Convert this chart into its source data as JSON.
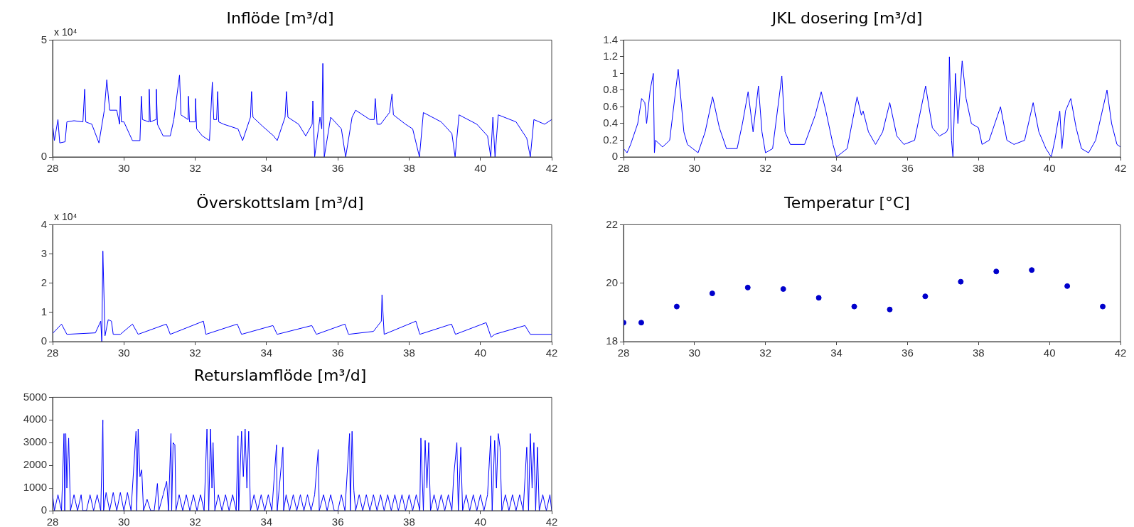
{
  "chart_data": [
    {
      "type": "line",
      "title": "Inflöde [m³/d]",
      "annotations": [
        "x 10⁴"
      ],
      "color": "#0000ff",
      "xlim": [
        28,
        42
      ],
      "xticks": [
        28,
        30,
        32,
        34,
        36,
        38,
        40,
        42
      ],
      "ylim": [
        0,
        5
      ],
      "yticks": [
        0,
        5
      ],
      "x": [
        28,
        28.05,
        28.15,
        28.2,
        28.35,
        28.4,
        28.6,
        28.85,
        28.9,
        28.93,
        29.1,
        29.3,
        29.45,
        29.52,
        29.6,
        29.8,
        29.88,
        29.9,
        29.93,
        30.0,
        30.24,
        30.45,
        30.49,
        30.52,
        30.7,
        30.71,
        30.74,
        30.9,
        30.91,
        30.94,
        31.1,
        31.3,
        31.4,
        31.56,
        31.6,
        31.8,
        31.81,
        31.84,
        32.0,
        32.01,
        32.04,
        32.2,
        32.4,
        32.48,
        32.52,
        32.6,
        32.63,
        32.66,
        32.8,
        33.2,
        33.33,
        33.55,
        33.58,
        33.62,
        33.9,
        34.2,
        34.3,
        34.52,
        34.56,
        34.6,
        34.9,
        35.1,
        35.28,
        35.3,
        35.35,
        35.5,
        35.55,
        35.58,
        35.62,
        35.8,
        36.1,
        36.22,
        36.4,
        36.5,
        36.9,
        37.02,
        37.05,
        37.1,
        37.2,
        37.45,
        37.52,
        37.56,
        37.9,
        38.1,
        38.29,
        38.4,
        38.9,
        39.2,
        39.29,
        39.4,
        39.9,
        40.2,
        40.29,
        40.35,
        40.41,
        40.5,
        41.0,
        41.3,
        41.4,
        41.5,
        41.8,
        42
      ],
      "values": [
        1.4,
        0.7,
        1.6,
        0.6,
        0.65,
        1.5,
        1.55,
        1.5,
        2.9,
        1.5,
        1.4,
        0.6,
        2.0,
        3.3,
        2.0,
        2.0,
        1.4,
        2.6,
        1.5,
        1.5,
        0.7,
        0.7,
        2.6,
        1.6,
        1.5,
        2.9,
        1.5,
        1.6,
        2.9,
        1.4,
        0.9,
        0.9,
        1.6,
        3.5,
        1.8,
        1.6,
        2.6,
        1.5,
        1.5,
        2.5,
        1.2,
        0.9,
        0.7,
        3.2,
        1.6,
        1.6,
        2.8,
        1.5,
        1.4,
        1.2,
        0.7,
        1.7,
        2.8,
        1.7,
        1.3,
        0.9,
        0.7,
        1.7,
        2.8,
        1.7,
        1.4,
        0.9,
        1.4,
        2.4,
        0,
        1.7,
        1.2,
        4.0,
        0,
        1.7,
        1.2,
        0,
        1.7,
        2.0,
        1.6,
        1.6,
        2.5,
        1.4,
        1.4,
        1.9,
        2.7,
        1.8,
        1.4,
        1.2,
        0,
        1.9,
        1.5,
        1.0,
        0,
        1.8,
        1.4,
        0.9,
        0,
        1.7,
        0,
        1.8,
        1.5,
        0.8,
        0,
        1.6,
        1.4,
        1.6
      ]
    },
    {
      "type": "line",
      "title": "JKL dosering [m³/d]",
      "color": "#0000ff",
      "xlim": [
        28,
        42
      ],
      "xticks": [
        28,
        30,
        32,
        34,
        36,
        38,
        40,
        42
      ],
      "ylim": [
        0,
        1.4
      ],
      "yticks": [
        0,
        0.2,
        0.4,
        0.6,
        0.8,
        1,
        1.2,
        1.4
      ],
      "x": [
        28,
        28.1,
        28.2,
        28.4,
        28.51,
        28.6,
        28.65,
        28.75,
        28.84,
        28.87,
        28.9,
        29.1,
        29.3,
        29.54,
        29.7,
        29.8,
        30.1,
        30.3,
        30.51,
        30.7,
        30.9,
        31.2,
        31.35,
        31.51,
        31.65,
        31.8,
        31.9,
        32.0,
        32.2,
        32.46,
        32.55,
        32.7,
        33.1,
        33.4,
        33.57,
        33.7,
        33.9,
        34.0,
        34.3,
        34.58,
        34.7,
        34.75,
        34.9,
        35.1,
        35.3,
        35.5,
        35.7,
        35.9,
        36.2,
        36.51,
        36.7,
        36.9,
        37.1,
        37.15,
        37.18,
        37.24,
        37.28,
        37.35,
        37.42,
        37.54,
        37.65,
        37.8,
        38.0,
        38.1,
        38.3,
        38.62,
        38.8,
        39.0,
        39.3,
        39.54,
        39.7,
        39.9,
        40.05,
        40.15,
        40.29,
        40.35,
        40.45,
        40.6,
        40.75,
        40.9,
        41.1,
        41.3,
        41.62,
        41.75,
        41.9,
        42
      ],
      "values": [
        0.1,
        0.05,
        0.15,
        0.4,
        0.7,
        0.65,
        0.4,
        0.8,
        1.0,
        0.05,
        0.2,
        0.12,
        0.2,
        1.05,
        0.3,
        0.15,
        0.05,
        0.3,
        0.72,
        0.35,
        0.1,
        0.1,
        0.4,
        0.78,
        0.3,
        0.85,
        0.3,
        0.05,
        0.1,
        0.97,
        0.3,
        0.15,
        0.15,
        0.5,
        0.78,
        0.55,
        0.15,
        0.0,
        0.1,
        0.72,
        0.5,
        0.55,
        0.3,
        0.15,
        0.3,
        0.65,
        0.25,
        0.15,
        0.2,
        0.85,
        0.35,
        0.25,
        0.3,
        0.35,
        1.2,
        0.2,
        0.0,
        1.0,
        0.4,
        1.15,
        0.7,
        0.4,
        0.35,
        0.15,
        0.2,
        0.6,
        0.2,
        0.15,
        0.2,
        0.65,
        0.3,
        0.1,
        0.0,
        0.2,
        0.55,
        0.1,
        0.55,
        0.7,
        0.35,
        0.1,
        0.05,
        0.2,
        0.8,
        0.4,
        0.15,
        0.12
      ]
    },
    {
      "type": "line",
      "title": "Överskottslam [m³/d]",
      "annotations": [
        "x 10⁴"
      ],
      "color": "#0000ff",
      "xlim": [
        28,
        42
      ],
      "xticks": [
        28,
        30,
        32,
        34,
        36,
        38,
        40,
        42
      ],
      "ylim": [
        0,
        4
      ],
      "yticks": [
        0,
        1,
        2,
        3,
        4
      ],
      "x": [
        28,
        28.25,
        28.4,
        29.2,
        29.35,
        29.38,
        29.41,
        29.47,
        29.56,
        29.65,
        29.7,
        29.9,
        30.24,
        30.4,
        31.19,
        31.3,
        32.23,
        32.3,
        33.18,
        33.3,
        34.18,
        34.3,
        35.27,
        35.4,
        36.2,
        36.3,
        37.0,
        37.22,
        37.24,
        37.3,
        38.19,
        38.3,
        39.19,
        39.3,
        40.16,
        40.3,
        40.4,
        41.25,
        41.4,
        42
      ],
      "values": [
        0.28,
        0.6,
        0.25,
        0.3,
        0.7,
        0,
        3.1,
        0.2,
        0.75,
        0.7,
        0.25,
        0.25,
        0.6,
        0.25,
        0.6,
        0.25,
        0.7,
        0.25,
        0.6,
        0.25,
        0.55,
        0.25,
        0.55,
        0.25,
        0.6,
        0.25,
        0.35,
        0.7,
        1.6,
        0.25,
        0.7,
        0.25,
        0.6,
        0.25,
        0.65,
        0.15,
        0.25,
        0.55,
        0.25,
        0.25
      ]
    },
    {
      "type": "scatter",
      "title": "Temperatur [°C]",
      "marker": "circle",
      "color": "#0000cc",
      "xlim": [
        28,
        42
      ],
      "xticks": [
        28,
        30,
        32,
        34,
        36,
        38,
        40,
        42
      ],
      "ylim": [
        18,
        22
      ],
      "yticks": [
        18,
        20,
        22
      ],
      "x": [
        28,
        28.5,
        29.5,
        30.5,
        31.5,
        32.5,
        33.5,
        34.5,
        35.5,
        36.5,
        37.5,
        38.5,
        39.5,
        40.5,
        41.5
      ],
      "values": [
        18.65,
        18.65,
        19.2,
        19.65,
        19.85,
        19.8,
        19.5,
        19.2,
        19.1,
        19.55,
        20.05,
        20.4,
        20.45,
        19.9,
        19.2
      ]
    },
    {
      "type": "line",
      "title": "Returslamflöde [m³/d]",
      "color": "#0000ff",
      "xlim": [
        28,
        42
      ],
      "xticks": [
        28,
        30,
        32,
        34,
        36,
        38,
        40,
        42
      ],
      "ylim": [
        0,
        5000
      ],
      "yticks": [
        0,
        1000,
        2000,
        3000,
        4000,
        5000
      ],
      "x": [
        28,
        28.05,
        28.15,
        28.25,
        28.32,
        28.34,
        28.37,
        28.4,
        28.45,
        28.5,
        28.6,
        28.7,
        28.8,
        28.85,
        28.95,
        29.05,
        29.15,
        29.25,
        29.35,
        29.41,
        29.43,
        29.5,
        29.6,
        29.7,
        29.8,
        29.9,
        30.0,
        30.1,
        30.2,
        30.34,
        30.36,
        30.4,
        30.45,
        30.5,
        30.55,
        30.65,
        30.75,
        30.85,
        30.94,
        30.98,
        31.1,
        31.2,
        31.25,
        31.32,
        31.34,
        31.38,
        31.43,
        31.46,
        31.55,
        31.65,
        31.75,
        31.85,
        31.95,
        32.05,
        32.15,
        32.25,
        32.33,
        32.38,
        32.43,
        32.47,
        32.5,
        32.55,
        32.65,
        32.75,
        32.85,
        32.95,
        33.05,
        33.15,
        33.2,
        33.22,
        33.3,
        33.35,
        33.4,
        33.45,
        33.5,
        33.55,
        33.65,
        33.75,
        33.85,
        33.95,
        34.05,
        34.15,
        34.28,
        34.3,
        34.46,
        34.48,
        34.55,
        34.65,
        34.75,
        34.85,
        34.95,
        35.05,
        35.15,
        35.25,
        35.35,
        35.45,
        35.48,
        35.6,
        35.7,
        35.8,
        35.9,
        36.0,
        36.1,
        36.2,
        36.33,
        36.35,
        36.4,
        36.45,
        36.5,
        36.6,
        36.7,
        36.8,
        36.9,
        37.0,
        37.1,
        37.2,
        37.3,
        37.4,
        37.5,
        37.6,
        37.7,
        37.8,
        37.9,
        38.0,
        38.1,
        38.2,
        38.3,
        38.33,
        38.4,
        38.45,
        38.5,
        38.55,
        38.6,
        38.7,
        38.8,
        38.9,
        39.0,
        39.1,
        39.2,
        39.25,
        39.34,
        39.38,
        39.45,
        39.5,
        39.6,
        39.7,
        39.8,
        39.9,
        40.0,
        40.1,
        40.2,
        40.29,
        40.33,
        40.4,
        40.45,
        40.5,
        40.55,
        40.6,
        40.7,
        40.8,
        40.9,
        41.0,
        41.1,
        41.2,
        41.3,
        41.35,
        41.4,
        41.45,
        41.5,
        41.55,
        41.6,
        41.65,
        41.75,
        41.85,
        41.95,
        42
      ],
      "values": [
        700,
        0,
        700,
        0,
        3400,
        0,
        3400,
        1000,
        3200,
        0,
        700,
        0,
        700,
        0,
        0,
        700,
        0,
        700,
        0,
        4000,
        0,
        800,
        0,
        800,
        0,
        800,
        0,
        800,
        0,
        3500,
        0,
        3600,
        1500,
        1800,
        0,
        500,
        0,
        0,
        1200,
        0,
        700,
        1300,
        0,
        3400,
        0,
        3000,
        2900,
        0,
        700,
        0,
        700,
        0,
        700,
        0,
        700,
        0,
        3600,
        0,
        3600,
        1000,
        3000,
        0,
        700,
        0,
        700,
        0,
        700,
        0,
        3300,
        0,
        3500,
        1500,
        3600,
        1000,
        3500,
        0,
        700,
        0,
        700,
        0,
        700,
        0,
        2900,
        0,
        2800,
        0,
        700,
        0,
        700,
        0,
        700,
        0,
        700,
        0,
        700,
        2700,
        0,
        700,
        0,
        700,
        0,
        0,
        700,
        0,
        3400,
        0,
        3500,
        900,
        0,
        700,
        0,
        700,
        0,
        700,
        0,
        700,
        0,
        700,
        0,
        700,
        0,
        700,
        0,
        700,
        0,
        700,
        0,
        3200,
        0,
        3100,
        1000,
        3000,
        0,
        700,
        0,
        700,
        0,
        700,
        0,
        1500,
        3000,
        0,
        2800,
        0,
        700,
        0,
        700,
        0,
        700,
        0,
        700,
        3300,
        0,
        3100,
        1000,
        3400,
        2800,
        0,
        700,
        0,
        700,
        0,
        700,
        0,
        2800,
        0,
        3400,
        1000,
        3000,
        0,
        2800,
        0,
        700,
        0,
        700,
        0
      ]
    }
  ]
}
